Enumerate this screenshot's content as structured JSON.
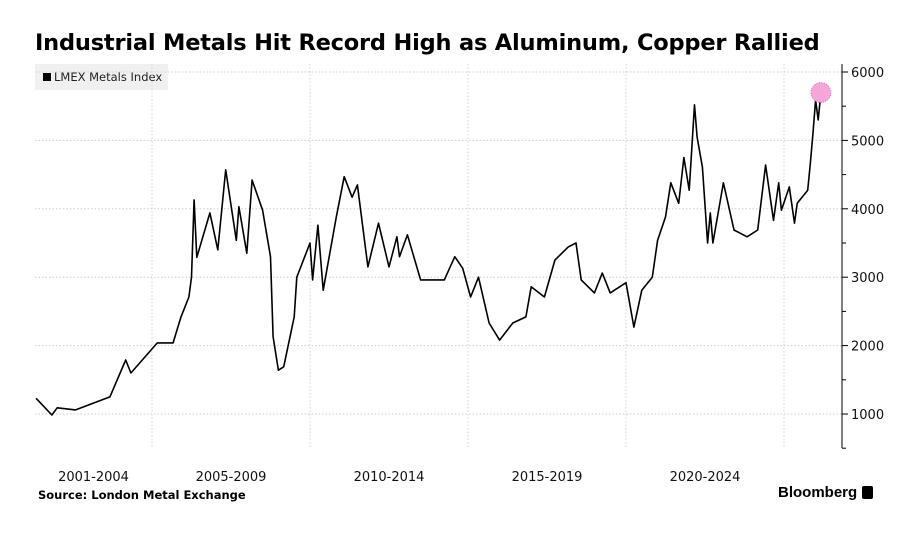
{
  "chart_data": {
    "type": "line",
    "title": "Industrial Metals Hit Record High as Aluminum, Copper Rallied",
    "source": "Source: London Metal Exchange",
    "brand": "Bloomberg",
    "xlabel": "",
    "ylabel": "",
    "x_tick_labels": [
      "2001-2004",
      "2005-2009",
      "2010-2014",
      "2015-2019",
      "2020-2024"
    ],
    "x_gridlines": [
      "2005-01",
      "2010-01",
      "2015-01",
      "2020-01",
      "2025-01"
    ],
    "y_ticks": [
      1000,
      2000,
      3000,
      4000,
      5000,
      6000
    ],
    "ylim": [
      500,
      6100
    ],
    "y_axis_side": "right",
    "grid": true,
    "legend_position": "top-left",
    "highlight": {
      "date": "2026-03",
      "value": 5700,
      "color": "#f4a6d8"
    },
    "series": [
      {
        "name": "LMEX Metals Index",
        "color": "#000000",
        "points": [
          [
            "2001-05",
            1230
          ],
          [
            "2001-11",
            985
          ],
          [
            "2002-01",
            1090
          ],
          [
            "2002-08",
            1060
          ],
          [
            "2003-09",
            1250
          ],
          [
            "2004-03",
            1790
          ],
          [
            "2004-05",
            1600
          ],
          [
            "2005-03",
            2040
          ],
          [
            "2005-09",
            2040
          ],
          [
            "2005-12",
            2420
          ],
          [
            "2006-03",
            2710
          ],
          [
            "2006-04",
            3000
          ],
          [
            "2006-05",
            4130
          ],
          [
            "2006-06",
            3290
          ],
          [
            "2006-11",
            3940
          ],
          [
            "2007-02",
            3400
          ],
          [
            "2007-05",
            4570
          ],
          [
            "2007-09",
            3540
          ],
          [
            "2007-10",
            4030
          ],
          [
            "2008-01",
            3350
          ],
          [
            "2008-03",
            4420
          ],
          [
            "2008-07",
            3980
          ],
          [
            "2008-10",
            3300
          ],
          [
            "2008-11",
            2130
          ],
          [
            "2009-01",
            1640
          ],
          [
            "2009-03",
            1690
          ],
          [
            "2009-07",
            2420
          ],
          [
            "2009-08",
            3000
          ],
          [
            "2010-01",
            3500
          ],
          [
            "2010-02",
            2960
          ],
          [
            "2010-04",
            3760
          ],
          [
            "2010-06",
            2810
          ],
          [
            "2010-11",
            3880
          ],
          [
            "2011-02",
            4470
          ],
          [
            "2011-05",
            4170
          ],
          [
            "2011-07",
            4350
          ],
          [
            "2011-11",
            3150
          ],
          [
            "2012-03",
            3790
          ],
          [
            "2012-07",
            3150
          ],
          [
            "2012-10",
            3590
          ],
          [
            "2012-11",
            3300
          ],
          [
            "2013-02",
            3620
          ],
          [
            "2013-07",
            2960
          ],
          [
            "2014-04",
            2960
          ],
          [
            "2014-08",
            3300
          ],
          [
            "2014-11",
            3130
          ],
          [
            "2015-02",
            2710
          ],
          [
            "2015-05",
            3000
          ],
          [
            "2015-09",
            2330
          ],
          [
            "2016-01",
            2080
          ],
          [
            "2016-06",
            2330
          ],
          [
            "2016-11",
            2420
          ],
          [
            "2017-01",
            2860
          ],
          [
            "2017-06",
            2710
          ],
          [
            "2017-10",
            3250
          ],
          [
            "2018-03",
            3440
          ],
          [
            "2018-06",
            3500
          ],
          [
            "2018-08",
            2960
          ],
          [
            "2019-01",
            2770
          ],
          [
            "2019-04",
            3060
          ],
          [
            "2019-07",
            2770
          ],
          [
            "2020-01",
            2920
          ],
          [
            "2020-04",
            2270
          ],
          [
            "2020-07",
            2810
          ],
          [
            "2020-11",
            3000
          ],
          [
            "2021-01",
            3540
          ],
          [
            "2021-04",
            3880
          ],
          [
            "2021-06",
            4380
          ],
          [
            "2021-09",
            4080
          ],
          [
            "2021-11",
            4750
          ],
          [
            "2022-01",
            4270
          ],
          [
            "2022-03",
            5520
          ],
          [
            "2022-04",
            5050
          ],
          [
            "2022-06",
            4610
          ],
          [
            "2022-08",
            3500
          ],
          [
            "2022-09",
            3940
          ],
          [
            "2022-10",
            3500
          ],
          [
            "2023-02",
            4380
          ],
          [
            "2023-06",
            3690
          ],
          [
            "2023-11",
            3590
          ],
          [
            "2024-03",
            3690
          ],
          [
            "2024-06",
            4640
          ],
          [
            "2024-09",
            3830
          ],
          [
            "2024-11",
            4380
          ],
          [
            "2024-12",
            3980
          ],
          [
            "2025-03",
            4320
          ],
          [
            "2025-05",
            3790
          ],
          [
            "2025-06",
            4080
          ],
          [
            "2025-10",
            4270
          ],
          [
            "2025-11",
            4660
          ],
          [
            "2025-12",
            5110
          ],
          [
            "2026-01",
            5590
          ],
          [
            "2026-02",
            5300
          ],
          [
            "2026-03",
            5700
          ]
        ]
      }
    ]
  }
}
